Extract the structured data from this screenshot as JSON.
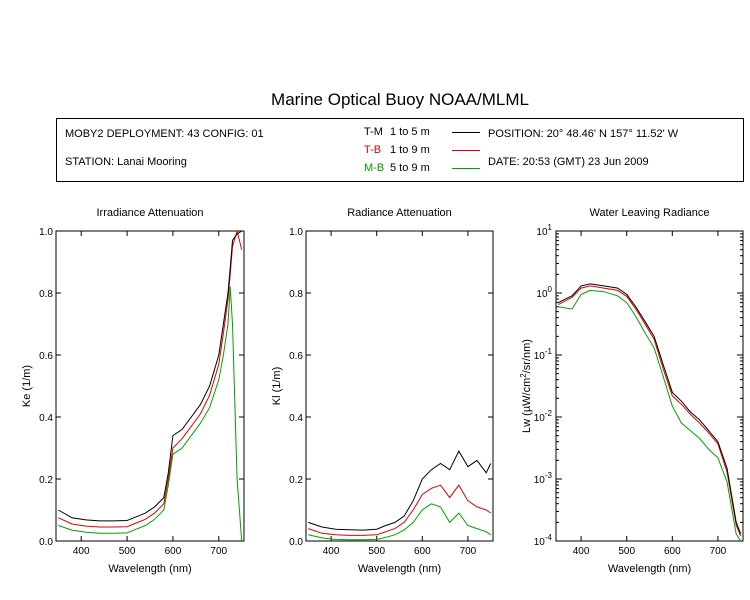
{
  "page": {
    "title": "Marine Optical Buoy NOAA/MLML",
    "info": {
      "deployment": "MOBY2 DEPLOYMENT: 43 CONFIG: 01",
      "station": "STATION: Lanai Mooring",
      "position": "POSITION: 20° 48.46' N   157° 11.52' W",
      "date": "DATE: 20:53 (GMT) 23 Jun 2009"
    },
    "legend": [
      {
        "code": "T-M",
        "range": "1 to 5  m",
        "color": "#000000"
      },
      {
        "code": "T-B",
        "range": "1 to 9  m",
        "color": "#e00000"
      },
      {
        "code": "M-B",
        "range": "5 to 9  m",
        "color": "#00a000"
      }
    ]
  },
  "chart_data": [
    {
      "type": "line",
      "title": "Irradiance Attenuation",
      "xlabel": "Wavelength (nm)",
      "ylabel": "Ke  (1/m)",
      "xlim": [
        345,
        755
      ],
      "ylim": [
        0.0,
        1.0
      ],
      "xticks": [
        400,
        500,
        600,
        700
      ],
      "yticks": [
        "0.0",
        "0.2",
        "0.4",
        "0.6",
        "0.8",
        "1.0"
      ],
      "x": [
        350,
        380,
        410,
        440,
        470,
        500,
        520,
        540,
        560,
        580,
        590,
        600,
        620,
        640,
        660,
        680,
        700,
        710,
        720,
        725,
        730,
        740,
        750
      ],
      "series": [
        {
          "name": "T-M",
          "color": "#000000",
          "values": [
            0.1,
            0.075,
            0.068,
            0.065,
            0.065,
            0.066,
            0.078,
            0.09,
            0.11,
            0.14,
            0.22,
            0.34,
            0.36,
            0.4,
            0.44,
            0.5,
            0.6,
            0.7,
            0.8,
            0.88,
            0.97,
            0.99,
            1.0
          ]
        },
        {
          "name": "T-B",
          "color": "#e00000",
          "values": [
            0.075,
            0.055,
            0.048,
            0.045,
            0.045,
            0.046,
            0.058,
            0.07,
            0.09,
            0.12,
            0.2,
            0.3,
            0.33,
            0.37,
            0.41,
            0.47,
            0.57,
            0.67,
            0.78,
            0.86,
            0.95,
            1.0,
            0.94
          ]
        },
        {
          "name": "M-B",
          "color": "#00a000",
          "values": [
            0.05,
            0.035,
            0.028,
            0.025,
            0.025,
            0.026,
            0.038,
            0.05,
            0.07,
            0.1,
            0.18,
            0.28,
            0.3,
            0.34,
            0.38,
            0.43,
            0.52,
            0.6,
            0.7,
            0.82,
            0.7,
            0.2,
            0.0
          ]
        }
      ]
    },
    {
      "type": "line",
      "title": "Radiance Attenuation",
      "xlabel": "Wavelength (nm)",
      "ylabel": "Kl  (1/m)",
      "xlim": [
        345,
        755
      ],
      "ylim": [
        0.0,
        1.0
      ],
      "xticks": [
        400,
        500,
        600,
        700
      ],
      "yticks": [
        "0.0",
        "0.2",
        "0.4",
        "0.6",
        "0.8",
        "1.0"
      ],
      "x": [
        350,
        380,
        410,
        440,
        470,
        500,
        520,
        540,
        560,
        580,
        600,
        620,
        640,
        660,
        680,
        700,
        720,
        740,
        750
      ],
      "series": [
        {
          "name": "T-M",
          "color": "#000000",
          "values": [
            0.06,
            0.045,
            0.038,
            0.036,
            0.035,
            0.038,
            0.05,
            0.06,
            0.08,
            0.13,
            0.2,
            0.23,
            0.25,
            0.23,
            0.29,
            0.24,
            0.26,
            0.22,
            0.25
          ]
        },
        {
          "name": "T-B",
          "color": "#e00000",
          "values": [
            0.04,
            0.025,
            0.02,
            0.018,
            0.018,
            0.02,
            0.03,
            0.04,
            0.06,
            0.1,
            0.15,
            0.17,
            0.18,
            0.14,
            0.18,
            0.13,
            0.11,
            0.1,
            0.09
          ]
        },
        {
          "name": "M-B",
          "color": "#00a000",
          "values": [
            0.02,
            0.01,
            0.005,
            0.004,
            0.004,
            0.005,
            0.012,
            0.02,
            0.035,
            0.06,
            0.1,
            0.12,
            0.11,
            0.06,
            0.09,
            0.05,
            0.04,
            0.03,
            0.02
          ]
        }
      ]
    },
    {
      "type": "line",
      "title": "Water Leaving Radiance",
      "xlabel": "Wavelength (nm)",
      "ylabel": "Lw  (µW/cm²/sr/nm)",
      "xlim": [
        345,
        755
      ],
      "ylim": [
        0.0001,
        10
      ],
      "yscale": "log",
      "xticks": [
        400,
        500,
        600,
        700
      ],
      "yticks": [
        "10^1",
        "10^0",
        "10^-1",
        "10^-2",
        "10^-3",
        "10^-4"
      ],
      "x": [
        350,
        380,
        400,
        420,
        450,
        480,
        500,
        520,
        540,
        560,
        580,
        600,
        620,
        640,
        660,
        680,
        700,
        720,
        740,
        750
      ],
      "series": [
        {
          "name": "T-M",
          "color": "#000000",
          "values": [
            0.7,
            0.9,
            1.3,
            1.4,
            1.3,
            1.2,
            0.95,
            0.6,
            0.35,
            0.2,
            0.07,
            0.025,
            0.018,
            0.012,
            0.009,
            0.006,
            0.004,
            0.0015,
            0.0002,
            0.00013
          ]
        },
        {
          "name": "T-B",
          "color": "#e00000",
          "values": [
            0.65,
            0.85,
            1.2,
            1.3,
            1.2,
            1.1,
            0.88,
            0.55,
            0.32,
            0.18,
            0.06,
            0.022,
            0.016,
            0.011,
            0.008,
            0.0055,
            0.0037,
            0.0013,
            0.00018,
            0.00012
          ]
        },
        {
          "name": "M-B",
          "color": "#00a000",
          "values": [
            0.6,
            0.55,
            0.95,
            1.1,
            1.05,
            0.9,
            0.7,
            0.42,
            0.23,
            0.13,
            0.045,
            0.015,
            0.008,
            0.006,
            0.0045,
            0.003,
            0.0022,
            0.0009,
            0.00013,
            0.0001
          ]
        }
      ]
    }
  ]
}
